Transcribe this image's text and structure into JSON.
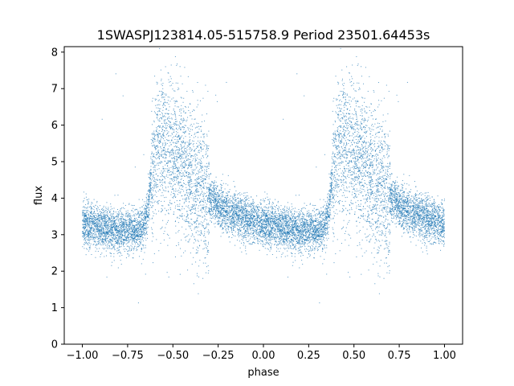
{
  "chart_data": {
    "type": "scatter",
    "title": "1SWASPJ123814.05-515758.9 Period 23501.64453s",
    "xlabel": "phase",
    "ylabel": "flux",
    "xlim": [
      -1.1,
      1.1
    ],
    "ylim": [
      0,
      8.15
    ],
    "x_ticks": [
      -1.0,
      -0.75,
      -0.5,
      -0.25,
      0.0,
      0.25,
      0.5,
      0.75,
      1.0
    ],
    "x_tick_labels": [
      "−1.00",
      "−0.75",
      "−0.50",
      "−0.25",
      "0.00",
      "0.25",
      "0.50",
      "0.75",
      "1.00"
    ],
    "y_ticks": [
      0,
      1,
      2,
      3,
      4,
      5,
      6,
      7,
      8
    ],
    "y_tick_labels": [
      "0",
      "1",
      "2",
      "3",
      "4",
      "5",
      "6",
      "7",
      "8"
    ],
    "grid": false,
    "legend": "none",
    "point_color": "#1f77b4",
    "light_curve_profile": {
      "phase": [
        0.0,
        0.05,
        0.1,
        0.15,
        0.2,
        0.25,
        0.3,
        0.33,
        0.36,
        0.38,
        0.4,
        0.45,
        0.5,
        0.55,
        0.6,
        0.65,
        0.7,
        0.75,
        0.8,
        0.85,
        0.9,
        0.95,
        1.0
      ],
      "flux": [
        3.3,
        3.25,
        3.2,
        3.15,
        3.12,
        3.1,
        3.1,
        3.15,
        3.6,
        4.6,
        5.2,
        5.4,
        5.3,
        5.05,
        4.7,
        4.3,
        4.0,
        3.8,
        3.65,
        3.55,
        3.45,
        3.38,
        3.3
      ]
    },
    "point_count_per_cycle": 6000,
    "scatter_spread": 0.3,
    "phase_coverage": [
      -1.0,
      1.0
    ]
  }
}
